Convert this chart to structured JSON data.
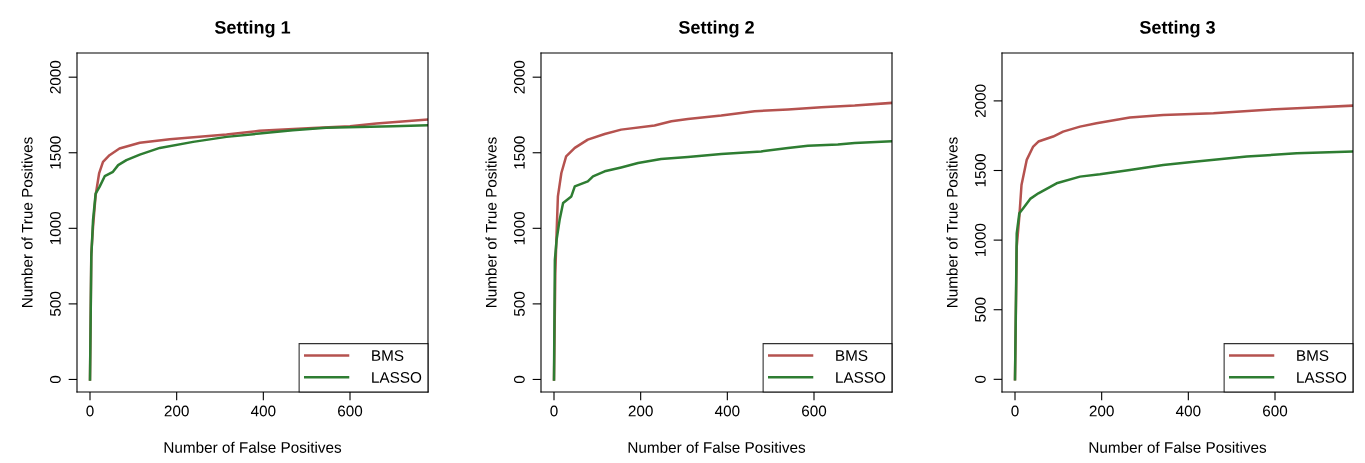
{
  "chart_data": [
    {
      "type": "line",
      "title": "Setting 1",
      "xlabel": "Number of False Positives",
      "ylabel": "Number of True Positives",
      "xlim": [
        -30,
        780
      ],
      "ylim": [
        -83,
        2160
      ],
      "xticks": [
        0,
        200,
        400,
        600
      ],
      "yticks": [
        0,
        500,
        1000,
        1500,
        2000
      ],
      "legend": "bottom right",
      "grid": false,
      "series": [
        {
          "name": "BMS",
          "color": "#b5524f",
          "x": [
            0,
            3,
            7,
            13,
            21,
            30,
            45,
            68,
            115,
            184,
            315,
            391,
            514,
            600,
            661,
            780
          ],
          "values": [
            0,
            833,
            1010,
            1219,
            1363,
            1440,
            1484,
            1528,
            1566,
            1590,
            1621,
            1645,
            1663,
            1676,
            1693,
            1720
          ]
        },
        {
          "name": "LASSO",
          "color": "#2e7d32",
          "x": [
            0,
            3,
            7,
            13,
            22,
            34,
            53,
            65,
            84,
            115,
            161,
            238,
            315,
            391,
            468,
            545,
            699,
            780
          ],
          "values": [
            0,
            811,
            1054,
            1230,
            1274,
            1345,
            1374,
            1418,
            1451,
            1488,
            1532,
            1572,
            1605,
            1627,
            1649,
            1665,
            1676,
            1682
          ]
        }
      ]
    },
    {
      "type": "line",
      "title": "Setting 2",
      "xlabel": "Number of False Positives",
      "ylabel": "Number of True Positives",
      "xlim": [
        -30,
        780
      ],
      "ylim": [
        -83,
        2160
      ],
      "xticks": [
        0,
        200,
        400,
        600
      ],
      "yticks": [
        0,
        500,
        1000,
        1500,
        2000
      ],
      "legend": "bottom right",
      "grid": false,
      "series": [
        {
          "name": "BMS",
          "color": "#b5524f",
          "x": [
            0,
            3,
            6,
            9,
            17,
            28,
            48,
            78,
            117,
            155,
            232,
            271,
            309,
            386,
            463,
            540,
            617,
            694,
            780
          ],
          "values": [
            0,
            703,
            968,
            1211,
            1366,
            1476,
            1532,
            1587,
            1624,
            1653,
            1680,
            1708,
            1724,
            1746,
            1775,
            1786,
            1801,
            1812,
            1830
          ]
        },
        {
          "name": "LASSO",
          "color": "#2e7d32",
          "x": [
            0,
            2,
            6,
            13,
            21,
            40,
            48,
            78,
            90,
            117,
            155,
            194,
            247,
            309,
            386,
            478,
            540,
            586,
            655,
            694,
            780
          ],
          "values": [
            0,
            791,
            924,
            1056,
            1167,
            1211,
            1277,
            1311,
            1344,
            1377,
            1403,
            1432,
            1459,
            1472,
            1492,
            1509,
            1532,
            1547,
            1554,
            1565,
            1576
          ]
        }
      ]
    },
    {
      "type": "line",
      "title": "Setting 3",
      "xlabel": "Number of False Positives",
      "ylabel": "Number of True Positives",
      "xlim": [
        -30,
        780
      ],
      "ylim": [
        -91,
        2344
      ],
      "xticks": [
        0,
        200,
        400,
        600
      ],
      "yticks": [
        0,
        500,
        1000,
        1500,
        2000
      ],
      "legend": "bottom right",
      "grid": false,
      "series": [
        {
          "name": "BMS",
          "color": "#b5524f",
          "x": [
            0,
            4,
            10,
            15,
            27,
            42,
            54,
            88,
            111,
            150,
            188,
            265,
            342,
            458,
            573,
            688,
            780
          ],
          "values": [
            0,
            953,
            1169,
            1396,
            1576,
            1672,
            1708,
            1744,
            1779,
            1815,
            1839,
            1880,
            1899,
            1911,
            1935,
            1952,
            1966
          ]
        },
        {
          "name": "LASSO",
          "color": "#2e7d32",
          "x": [
            0,
            4,
            10,
            19,
            35,
            54,
            96,
            150,
            196,
            265,
            342,
            419,
            535,
            650,
            780
          ],
          "values": [
            0,
            1049,
            1193,
            1229,
            1296,
            1336,
            1408,
            1456,
            1473,
            1504,
            1540,
            1564,
            1600,
            1624,
            1636
          ]
        }
      ]
    }
  ]
}
